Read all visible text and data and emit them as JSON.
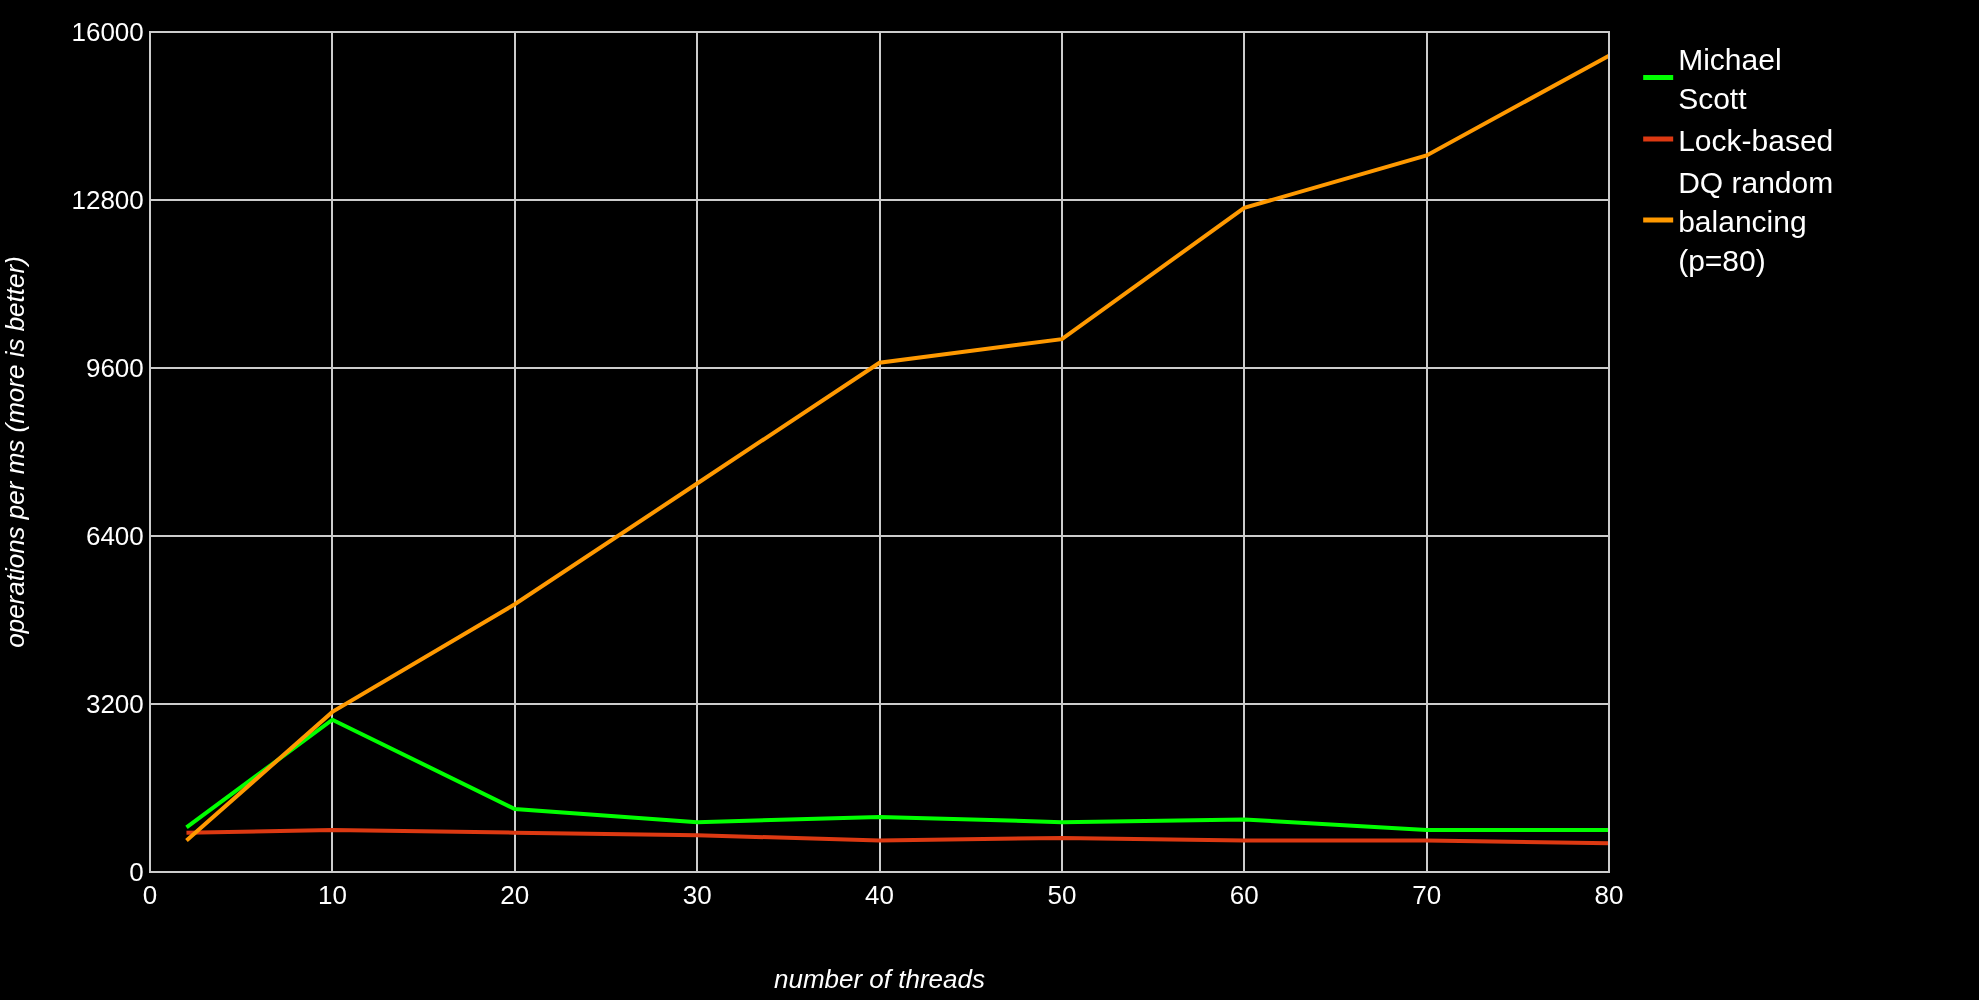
{
  "chart_data": {
    "type": "line",
    "xlabel": "number of threads",
    "ylabel": "operations per ms (more is better)",
    "x": [
      2,
      10,
      20,
      30,
      40,
      50,
      60,
      70,
      80
    ],
    "series": [
      {
        "name": "Michael Scott",
        "color": "#00ff00",
        "values": [
          850,
          2900,
          1200,
          950,
          1050,
          950,
          1000,
          800,
          800
        ]
      },
      {
        "name": "Lock-based",
        "color": "#dc3912",
        "values": [
          750,
          800,
          750,
          700,
          600,
          650,
          600,
          600,
          550
        ]
      },
      {
        "name": "DQ random balancing (p=80)",
        "color": "#ff9900",
        "values": [
          600,
          3050,
          5100,
          7400,
          9700,
          10150,
          12650,
          13650,
          15550
        ]
      }
    ],
    "xlim": [
      0,
      80
    ],
    "xticks": [
      0,
      10,
      20,
      30,
      40,
      50,
      60,
      70,
      80
    ],
    "ylim": [
      0,
      16000
    ],
    "yticks": [
      0,
      3200,
      6400,
      9600,
      12800,
      16000
    ],
    "grid": true,
    "legend": "top right",
    "marker": "none",
    "line_style": "solid"
  }
}
